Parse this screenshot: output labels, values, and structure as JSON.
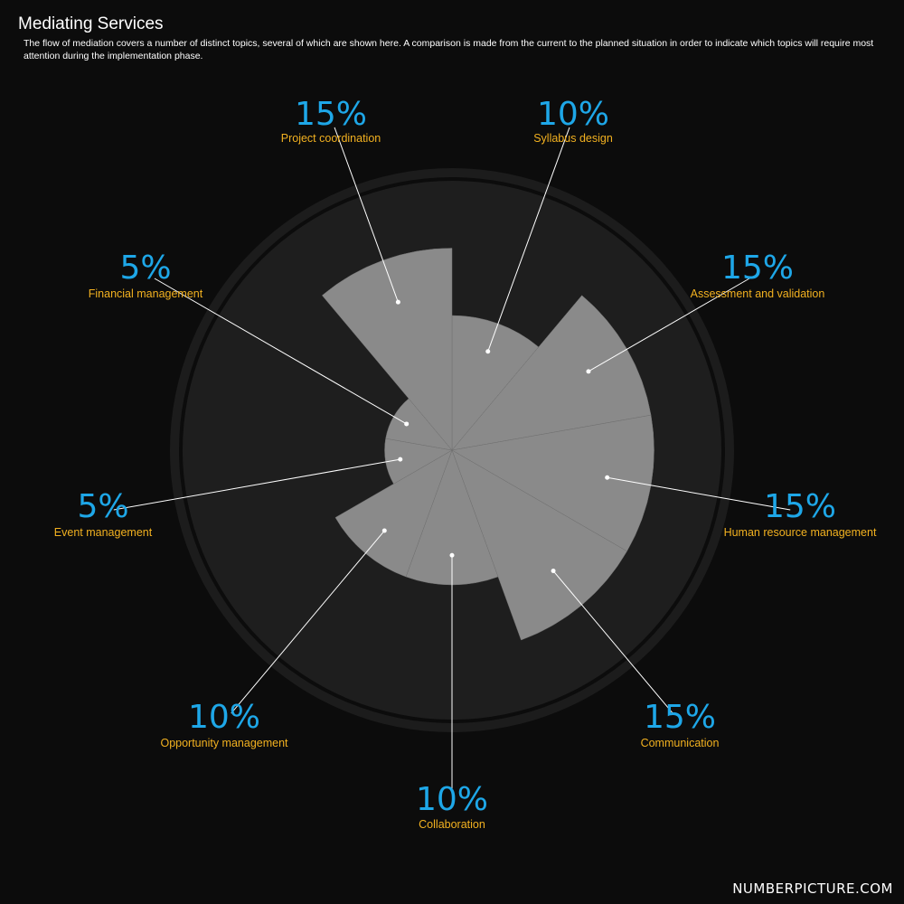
{
  "header": {
    "title": "Mediating Services",
    "subtitle": "The flow of mediation covers a number of distinct topics, several of which are shown here. A comparison is made from the current to the planned situation in order to indicate which topics will require most attention during the implementation phase."
  },
  "brand": "NUMBERPICTURE.COM",
  "colors": {
    "background": "#0c0c0c",
    "ring": "#1c1c1c",
    "inner_disc": "#1e1e1e",
    "slice": "#8a8a8a",
    "percent_text": "#1ea7e8",
    "label_text": "#f2b120"
  },
  "chart_data": {
    "type": "polar-area",
    "title": "Mediating Services",
    "rlim": [
      0,
      20
    ],
    "series": [
      {
        "label": "Syllabus design",
        "value": 10,
        "percent_text": "10%"
      },
      {
        "label": "Assessment and validation",
        "value": 15,
        "percent_text": "15%"
      },
      {
        "label": "Human resource management",
        "value": 15,
        "percent_text": "15%"
      },
      {
        "label": "Communication",
        "value": 15,
        "percent_text": "15%"
      },
      {
        "label": "Collaboration",
        "value": 10,
        "percent_text": "10%"
      },
      {
        "label": "Opportunity management",
        "value": 10,
        "percent_text": "10%"
      },
      {
        "label": "Event management",
        "value": 5,
        "percent_text": "5%"
      },
      {
        "label": "Financial management",
        "value": 5,
        "percent_text": "5%"
      },
      {
        "label": "Project coordination",
        "value": 15,
        "percent_text": "15%"
      }
    ]
  }
}
